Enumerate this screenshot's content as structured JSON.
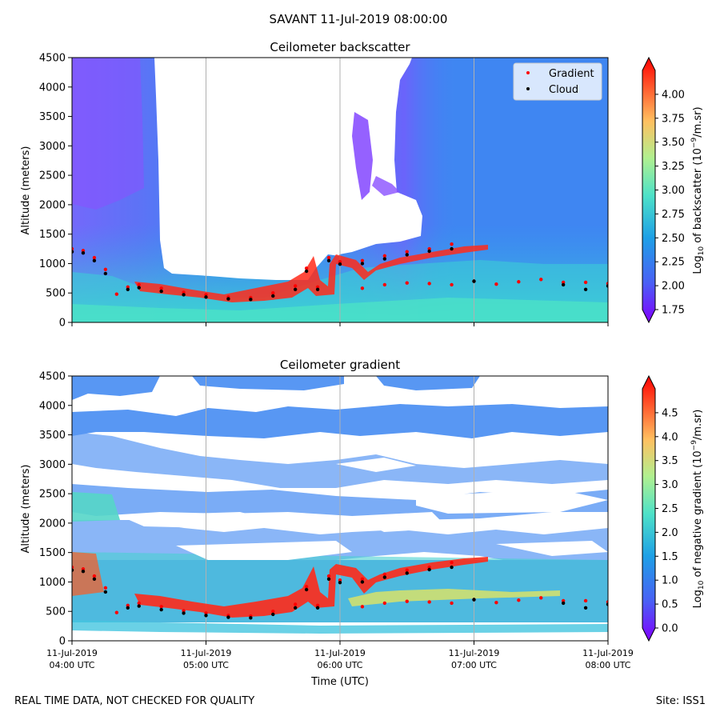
{
  "figure": {
    "suptitle": "SAVANT 11-Jul-2019 08:00:00",
    "footer_left": "REAL TIME DATA, NOT CHECKED FOR QUALITY",
    "footer_right": "Site: ISS1"
  },
  "chart_data": [
    {
      "type": "heatmap",
      "title": "Ceilometer backscatter",
      "xlabel": "",
      "ylabel": "Altitude (meters)",
      "ylim": [
        0,
        4500
      ],
      "y_ticks": [
        "0",
        "500",
        "1000",
        "1500",
        "2000",
        "2500",
        "3000",
        "3500",
        "4000",
        "4500"
      ],
      "x_ticks": [],
      "colormap": "rainbow",
      "colorbar": {
        "label": "Log10 of backscatter (10^-9/m.sr)",
        "range": [
          1.75,
          4.25
        ],
        "ticks": [
          "1.75",
          "2.00",
          "2.25",
          "2.50",
          "2.75",
          "3.00",
          "3.25",
          "3.50",
          "3.75",
          "4.00"
        ]
      },
      "legend": {
        "position": "top-right",
        "entries": [
          {
            "label": "Gradient",
            "color": "#ff0000"
          },
          {
            "label": "Cloud",
            "color": "#000000"
          }
        ]
      },
      "grid": "vertical-at-hours",
      "series": [
        {
          "name": "Gradient",
          "color": "#ff0000",
          "points": [
            [
              "04:00",
              1250
            ],
            [
              "04:05",
              1220
            ],
            [
              "04:10",
              1100
            ],
            [
              "04:15",
              900
            ],
            [
              "04:20",
              480
            ],
            [
              "04:25",
              600
            ],
            [
              "04:30",
              640
            ],
            [
              "04:40",
              580
            ],
            [
              "04:50",
              510
            ],
            [
              "05:00",
              470
            ],
            [
              "05:10",
              430
            ],
            [
              "05:20",
              420
            ],
            [
              "05:30",
              500
            ],
            [
              "05:40",
              620
            ],
            [
              "05:45",
              920
            ],
            [
              "05:50",
              600
            ],
            [
              "05:55",
              1100
            ],
            [
              "06:00",
              1030
            ],
            [
              "06:10",
              1050
            ],
            [
              "06:20",
              1130
            ],
            [
              "06:30",
              1200
            ],
            [
              "06:40",
              1250
            ],
            [
              "06:50",
              1330
            ],
            [
              "06:10",
              580
            ],
            [
              "06:20",
              640
            ],
            [
              "06:30",
              670
            ],
            [
              "06:40",
              660
            ],
            [
              "06:50",
              640
            ],
            [
              "07:00",
              700
            ],
            [
              "07:10",
              650
            ],
            [
              "07:20",
              690
            ],
            [
              "07:30",
              730
            ],
            [
              "07:40",
              680
            ],
            [
              "07:50",
              680
            ],
            [
              "08:00",
              660
            ]
          ]
        },
        {
          "name": "Cloud",
          "color": "#000000",
          "points": [
            [
              "04:00",
              1200
            ],
            [
              "04:05",
              1180
            ],
            [
              "04:10",
              1050
            ],
            [
              "04:15",
              830
            ],
            [
              "04:25",
              560
            ],
            [
              "04:30",
              590
            ],
            [
              "04:40",
              530
            ],
            [
              "04:50",
              470
            ],
            [
              "05:00",
              430
            ],
            [
              "05:10",
              400
            ],
            [
              "05:20",
              390
            ],
            [
              "05:30",
              450
            ],
            [
              "05:40",
              560
            ],
            [
              "05:45",
              870
            ],
            [
              "05:50",
              560
            ],
            [
              "05:55",
              1050
            ],
            [
              "06:00",
              990
            ],
            [
              "06:10",
              1000
            ],
            [
              "06:20",
              1080
            ],
            [
              "06:30",
              1150
            ],
            [
              "06:40",
              1210
            ],
            [
              "06:50",
              1250
            ],
            [
              "07:00",
              700
            ],
            [
              "07:40",
              640
            ],
            [
              "07:50",
              560
            ],
            [
              "08:00",
              620
            ]
          ]
        }
      ]
    },
    {
      "type": "heatmap",
      "title": "Ceilometer gradient",
      "xlabel": "Time (UTC)",
      "ylabel": "Altitude (meters)",
      "ylim": [
        0,
        4500
      ],
      "y_ticks": [
        "0",
        "500",
        "1000",
        "1500",
        "2000",
        "2500",
        "3000",
        "3500",
        "4000",
        "4500"
      ],
      "x_ticks": [
        {
          "line1": "11-Jul-2019",
          "line2": "04:00 UTC"
        },
        {
          "line1": "11-Jul-2019",
          "line2": "05:00 UTC"
        },
        {
          "line1": "11-Jul-2019",
          "line2": "06:00 UTC"
        },
        {
          "line1": "11-Jul-2019",
          "line2": "07:00 UTC"
        },
        {
          "line1": "11-Jul-2019",
          "line2": "08:00 UTC"
        }
      ],
      "colormap": "rainbow",
      "colorbar": {
        "label": "Log10 of negative gradient (10^-9/m.sr)",
        "range": [
          0,
          5
        ],
        "ticks": [
          "0.0",
          "0.5",
          "1.0",
          "1.5",
          "2.0",
          "2.5",
          "3.0",
          "3.5",
          "4.0",
          "4.5"
        ]
      },
      "grid": "vertical-at-hours",
      "series": [
        {
          "name": "Gradient",
          "color": "#ff0000",
          "points": [
            [
              "04:00",
              1250
            ],
            [
              "04:05",
              1220
            ],
            [
              "04:10",
              1100
            ],
            [
              "04:15",
              900
            ],
            [
              "04:20",
              480
            ],
            [
              "04:25",
              600
            ],
            [
              "04:30",
              640
            ],
            [
              "04:40",
              580
            ],
            [
              "04:50",
              510
            ],
            [
              "05:00",
              470
            ],
            [
              "05:10",
              430
            ],
            [
              "05:20",
              420
            ],
            [
              "05:30",
              500
            ],
            [
              "05:40",
              620
            ],
            [
              "05:45",
              920
            ],
            [
              "05:50",
              600
            ],
            [
              "05:55",
              1100
            ],
            [
              "06:00",
              1030
            ],
            [
              "06:10",
              1050
            ],
            [
              "06:20",
              1130
            ],
            [
              "06:30",
              1200
            ],
            [
              "06:40",
              1250
            ],
            [
              "06:50",
              1330
            ],
            [
              "06:10",
              580
            ],
            [
              "06:20",
              640
            ],
            [
              "06:30",
              670
            ],
            [
              "06:40",
              660
            ],
            [
              "06:50",
              640
            ],
            [
              "07:00",
              700
            ],
            [
              "07:10",
              650
            ],
            [
              "07:20",
              690
            ],
            [
              "07:30",
              730
            ],
            [
              "07:40",
              680
            ],
            [
              "07:50",
              680
            ],
            [
              "08:00",
              660
            ]
          ]
        },
        {
          "name": "Cloud",
          "color": "#000000",
          "points": [
            [
              "04:00",
              1200
            ],
            [
              "04:05",
              1180
            ],
            [
              "04:10",
              1050
            ],
            [
              "04:15",
              830
            ],
            [
              "04:25",
              560
            ],
            [
              "04:30",
              590
            ],
            [
              "04:40",
              530
            ],
            [
              "04:50",
              470
            ],
            [
              "05:00",
              430
            ],
            [
              "05:10",
              400
            ],
            [
              "05:20",
              390
            ],
            [
              "05:30",
              450
            ],
            [
              "05:40",
              560
            ],
            [
              "05:45",
              870
            ],
            [
              "05:50",
              560
            ],
            [
              "05:55",
              1050
            ],
            [
              "06:00",
              990
            ],
            [
              "06:10",
              1000
            ],
            [
              "06:20",
              1080
            ],
            [
              "06:30",
              1150
            ],
            [
              "06:40",
              1210
            ],
            [
              "06:50",
              1250
            ],
            [
              "07:00",
              700
            ],
            [
              "07:40",
              640
            ],
            [
              "07:50",
              560
            ],
            [
              "08:00",
              620
            ]
          ]
        }
      ]
    }
  ]
}
